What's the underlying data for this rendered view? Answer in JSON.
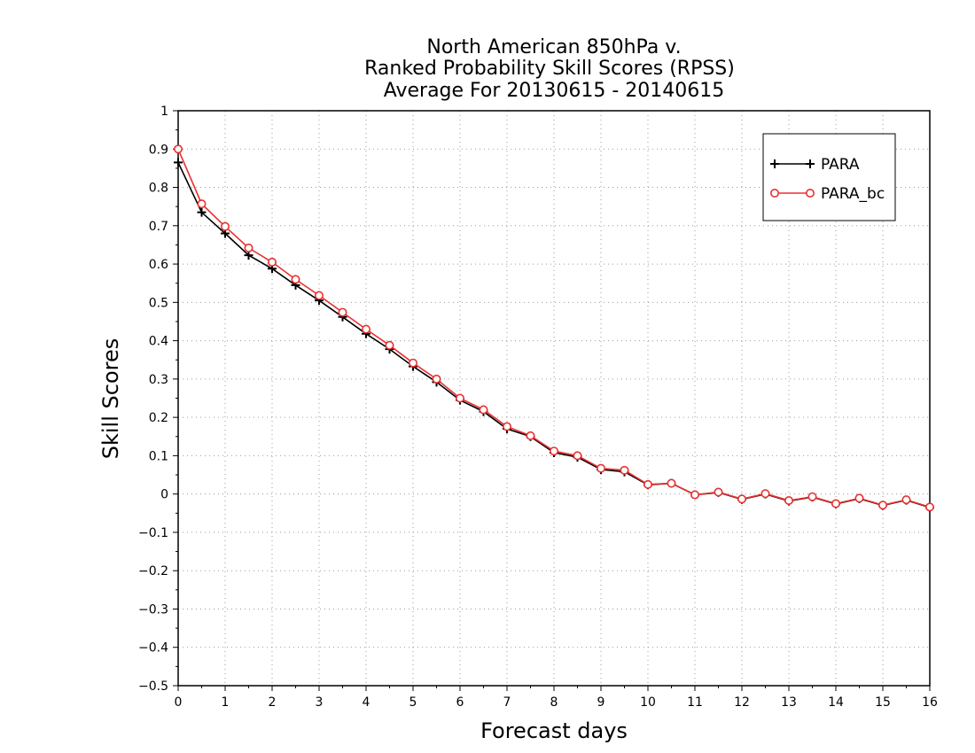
{
  "chart_data": {
    "type": "line",
    "title": [
      "North American 850hPa v.",
      "Ranked Probability Skill Scores (RPSS)",
      "Average For 20130615 - 20140615"
    ],
    "xlabel": "Forecast days",
    "ylabel": "Skill Scores",
    "xlim": [
      0,
      16
    ],
    "ylim": [
      -0.5,
      1
    ],
    "xticks": [
      0,
      1,
      2,
      3,
      4,
      5,
      6,
      7,
      8,
      9,
      10,
      11,
      12,
      13,
      14,
      15,
      16
    ],
    "yticks": [
      -0.5,
      -0.4,
      -0.3,
      -0.2,
      -0.1,
      0,
      0.1,
      0.2,
      0.3,
      0.4,
      0.5,
      0.6,
      0.7,
      0.8,
      0.9,
      1
    ],
    "ytick_labels": [
      "−0.5",
      "−0.4",
      "−0.3",
      "−0.2",
      "−0.1",
      "0",
      "0.1",
      "0.2",
      "0.3",
      "0.4",
      "0.5",
      "0.6",
      "0.7",
      "0.8",
      "0.9",
      "1"
    ],
    "grid": true,
    "legend_position": "top-right",
    "x": [
      0,
      0.5,
      1,
      1.5,
      2,
      2.5,
      3,
      3.5,
      4,
      4.5,
      5,
      5.5,
      6,
      6.5,
      7,
      7.5,
      8,
      8.5,
      9,
      9.5,
      10,
      10.5,
      11,
      11.5,
      12,
      12.5,
      13,
      13.5,
      14,
      14.5,
      15,
      15.5,
      16
    ],
    "series": [
      {
        "name": "PARA",
        "color": "#000000",
        "marker": "plus",
        "values": [
          0.865,
          0.735,
          0.68,
          0.623,
          0.588,
          0.545,
          0.505,
          0.462,
          0.418,
          0.378,
          0.333,
          0.292,
          0.245,
          0.215,
          0.17,
          0.15,
          0.108,
          0.096,
          0.064,
          0.058,
          0.024,
          0.028,
          -0.002,
          0.004,
          -0.014,
          0.0,
          -0.018,
          -0.008,
          -0.026,
          -0.012,
          -0.03,
          -0.016,
          -0.035
        ]
      },
      {
        "name": "PARA_bc",
        "color": "#e83030",
        "marker": "circle",
        "values": [
          0.9,
          0.757,
          0.698,
          0.642,
          0.605,
          0.56,
          0.518,
          0.474,
          0.43,
          0.388,
          0.342,
          0.3,
          0.25,
          0.22,
          0.176,
          0.152,
          0.112,
          0.1,
          0.067,
          0.062,
          0.025,
          0.028,
          -0.002,
          0.005,
          -0.013,
          0.001,
          -0.017,
          -0.007,
          -0.025,
          -0.011,
          -0.029,
          -0.015,
          -0.034
        ]
      }
    ]
  }
}
